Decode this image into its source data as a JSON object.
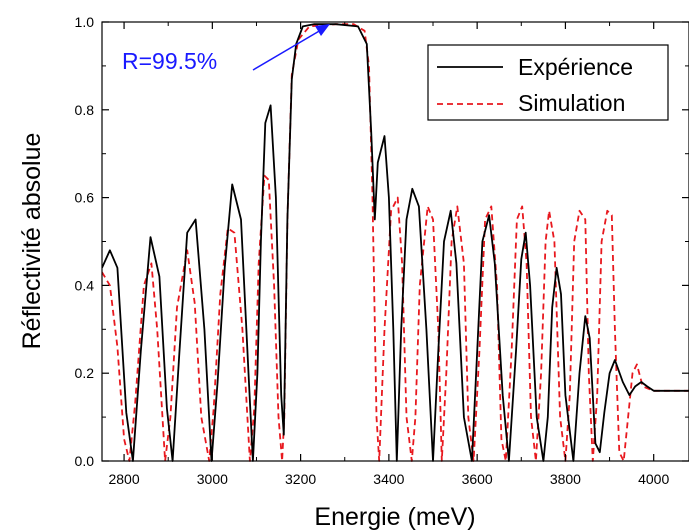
{
  "chart_data": {
    "type": "line",
    "xlabel": "Energie (meV)",
    "ylabel": "Réflectivité absolue",
    "xlim": [
      2750,
      4080
    ],
    "ylim": [
      0.0,
      1.0
    ],
    "x_ticks": [
      2800,
      3000,
      3200,
      3400,
      3600,
      3800,
      4000
    ],
    "x_tick_labels": [
      "2800",
      "3000",
      "3200",
      "3400",
      "3600",
      "3800",
      "4000"
    ],
    "y_ticks": [
      0.0,
      0.2,
      0.4,
      0.6,
      0.8,
      1.0
    ],
    "y_tick_labels": [
      "0.0",
      "0.2",
      "0.4",
      "0.6",
      "0.8",
      "1.0"
    ],
    "legend_position": "top-right",
    "annotation": {
      "text": "R=99.5%",
      "x": 3255,
      "y": 0.995,
      "color": "#1a1aff"
    },
    "series": [
      {
        "name": "Expérience",
        "color": "#000000",
        "style": "solid",
        "x": [
          2750,
          2768,
          2785,
          2805,
          2820,
          2838,
          2860,
          2880,
          2897,
          2910,
          2925,
          2943,
          2962,
          2982,
          2998,
          3012,
          3028,
          3045,
          3065,
          3082,
          3092,
          3102,
          3110,
          3120,
          3132,
          3144,
          3156,
          3162,
          3170,
          3180,
          3190,
          3205,
          3230,
          3280,
          3330,
          3350,
          3360,
          3368,
          3375,
          3390,
          3400,
          3410,
          3418,
          3428,
          3440,
          3453,
          3468,
          3485,
          3500,
          3512,
          3525,
          3540,
          3553,
          3570,
          3588,
          3600,
          3612,
          3627,
          3640,
          3658,
          3672,
          3688,
          3700,
          3710,
          3720,
          3735,
          3750,
          3760,
          3770,
          3780,
          3790,
          3800,
          3818,
          3832,
          3845,
          3855,
          3868,
          3878,
          3888,
          3900,
          3912,
          3930,
          3945,
          3958,
          3972,
          3985,
          4000,
          4030,
          4080
        ],
        "y": [
          0.44,
          0.48,
          0.44,
          0.11,
          0.0,
          0.25,
          0.51,
          0.42,
          0.12,
          0.0,
          0.24,
          0.52,
          0.55,
          0.3,
          0.0,
          0.18,
          0.44,
          0.63,
          0.55,
          0.2,
          0.0,
          0.2,
          0.5,
          0.77,
          0.81,
          0.6,
          0.15,
          0.06,
          0.55,
          0.87,
          0.95,
          0.99,
          0.995,
          0.995,
          0.99,
          0.95,
          0.75,
          0.55,
          0.68,
          0.74,
          0.6,
          0.3,
          0.0,
          0.3,
          0.55,
          0.62,
          0.58,
          0.3,
          0.0,
          0.25,
          0.5,
          0.57,
          0.45,
          0.1,
          0.0,
          0.25,
          0.5,
          0.56,
          0.45,
          0.15,
          0.0,
          0.25,
          0.46,
          0.52,
          0.4,
          0.1,
          0.0,
          0.1,
          0.35,
          0.44,
          0.38,
          0.15,
          0.0,
          0.2,
          0.33,
          0.28,
          0.04,
          0.02,
          0.11,
          0.2,
          0.23,
          0.18,
          0.15,
          0.17,
          0.18,
          0.17,
          0.16,
          0.16,
          0.16
        ]
      },
      {
        "name": "Simulation",
        "color": "#e8181e",
        "style": "dashed",
        "x": [
          2750,
          2768,
          2785,
          2800,
          2812,
          2825,
          2845,
          2862,
          2875,
          2893,
          2905,
          2920,
          2943,
          2960,
          2975,
          2993,
          3003,
          3018,
          3035,
          3050,
          3068,
          3085,
          3095,
          3105,
          3118,
          3128,
          3140,
          3150,
          3158,
          3163,
          3170,
          3180,
          3195,
          3220,
          3280,
          3320,
          3345,
          3355,
          3363,
          3372,
          3378,
          3390,
          3405,
          3420,
          3430,
          3440,
          3452,
          3460,
          3470,
          3488,
          3500,
          3512,
          3520,
          3530,
          3542,
          3555,
          3570,
          3580,
          3592,
          3605,
          3618,
          3632,
          3645,
          3655,
          3665,
          3678,
          3690,
          3702,
          3712,
          3722,
          3733,
          3745,
          3755,
          3763,
          3775,
          3788,
          3800,
          3810,
          3820,
          3832,
          3845,
          3853,
          3862,
          3872,
          3882,
          3895,
          3905,
          3912,
          3922,
          3932,
          3942,
          3952,
          3962,
          3975,
          4000,
          4080
        ],
        "y": [
          0.43,
          0.4,
          0.26,
          0.05,
          0.0,
          0.13,
          0.4,
          0.45,
          0.3,
          0.0,
          0.1,
          0.35,
          0.48,
          0.36,
          0.1,
          0.0,
          0.12,
          0.38,
          0.53,
          0.52,
          0.3,
          0.0,
          0.12,
          0.45,
          0.65,
          0.64,
          0.4,
          0.1,
          0.0,
          0.1,
          0.55,
          0.88,
          0.96,
          0.99,
          0.995,
          0.995,
          0.98,
          0.9,
          0.6,
          0.1,
          0.0,
          0.3,
          0.57,
          0.6,
          0.45,
          0.1,
          0.0,
          0.1,
          0.4,
          0.58,
          0.55,
          0.3,
          0.0,
          0.2,
          0.5,
          0.58,
          0.45,
          0.1,
          0.0,
          0.25,
          0.55,
          0.58,
          0.4,
          0.05,
          0.0,
          0.25,
          0.55,
          0.58,
          0.45,
          0.1,
          0.0,
          0.2,
          0.5,
          0.57,
          0.5,
          0.1,
          0.0,
          0.15,
          0.5,
          0.57,
          0.55,
          0.2,
          0.0,
          0.15,
          0.5,
          0.57,
          0.56,
          0.3,
          0.02,
          0.0,
          0.1,
          0.2,
          0.22,
          0.17,
          0.16,
          0.16
        ]
      }
    ]
  }
}
